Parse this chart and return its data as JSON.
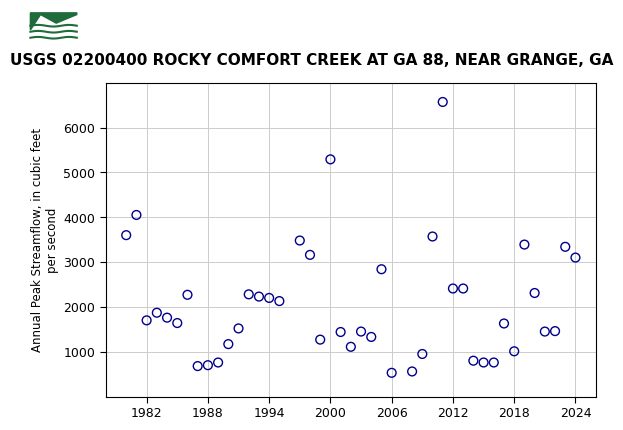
{
  "title": "USGS 02200400 ROCKY COMFORT CREEK AT GA 88, NEAR GRANGE, GA",
  "ylabel_line1": "Annual Peak Streamflow, in cubic feet",
  "ylabel_line2": "per second",
  "years": [
    1980,
    1981,
    1982,
    1983,
    1984,
    1985,
    1986,
    1987,
    1988,
    1989,
    1990,
    1991,
    1992,
    1993,
    1994,
    1995,
    1997,
    1998,
    1999,
    2000,
    2001,
    2002,
    2003,
    2004,
    2005,
    2006,
    2008,
    2009,
    2010,
    2011,
    2012,
    2013,
    2014,
    2015,
    2016,
    2017,
    2018,
    2019,
    2020,
    2021,
    2022,
    2023,
    2024
  ],
  "values": [
    3600,
    4050,
    1700,
    1870,
    1760,
    1640,
    2270,
    680,
    700,
    760,
    1170,
    1520,
    2280,
    2230,
    2200,
    2130,
    3480,
    3160,
    1270,
    5290,
    1440,
    1110,
    1450,
    1330,
    2840,
    530,
    560,
    950,
    3570,
    6570,
    2410,
    2410,
    800,
    760,
    760,
    1630,
    1010,
    3390,
    2310,
    1450,
    1460,
    3340,
    3100
  ],
  "marker_color": "#00008B",
  "marker_size": 40,
  "marker_lw": 1.0,
  "xlim": [
    1978,
    2026
  ],
  "ylim": [
    0,
    7000
  ],
  "yticks": [
    1000,
    2000,
    3000,
    4000,
    5000,
    6000
  ],
  "xticks": [
    1982,
    1988,
    1994,
    2000,
    2006,
    2012,
    2018,
    2024
  ],
  "grid_color": "#cccccc",
  "bg_color": "#ffffff",
  "header_color": "#1f6b3a",
  "header_text_color": "#ffffff",
  "title_fontsize": 11,
  "axis_label_fontsize": 8.5,
  "tick_fontsize": 9,
  "header_label": "USGS"
}
